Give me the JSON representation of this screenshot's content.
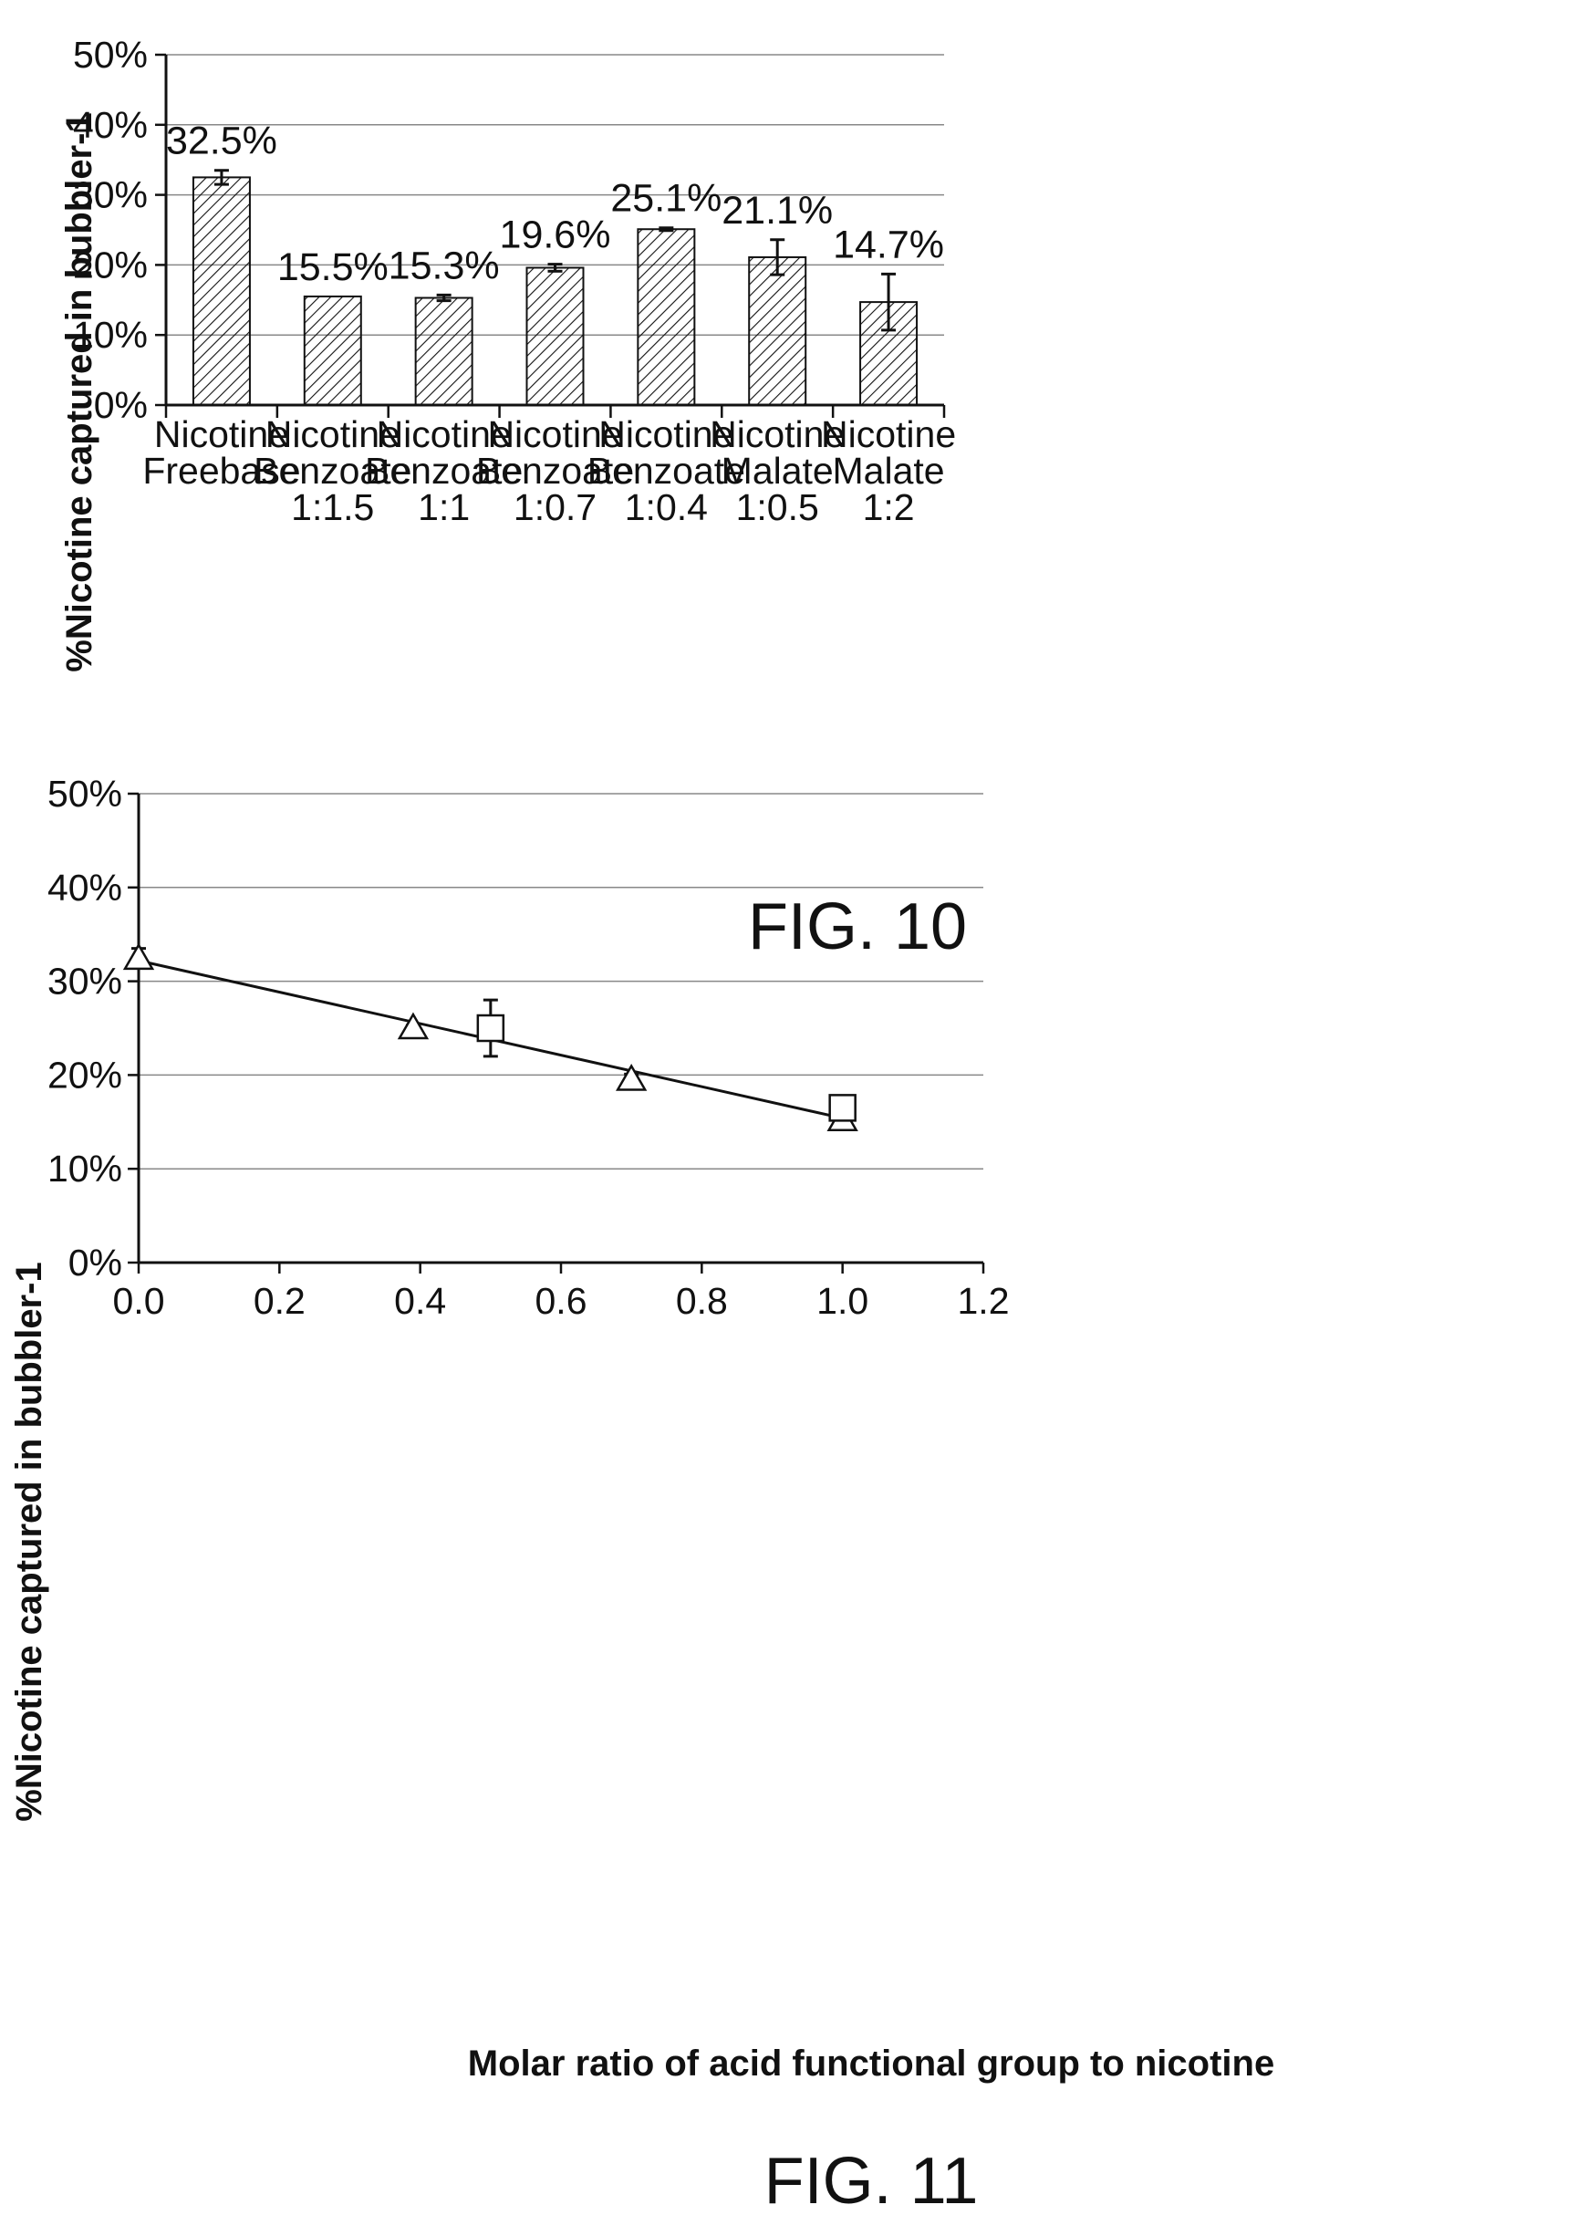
{
  "figures": [
    {
      "caption": "FIG. 10",
      "chart_data": {
        "type": "bar",
        "ylabel": "%Nicotine captured in bubbler-1",
        "xlabel": "",
        "ylim": [
          0,
          50
        ],
        "yticks": [
          "0%",
          "10%",
          "20%",
          "30%",
          "40%",
          "50%"
        ],
        "grid": true,
        "categories": [
          [
            "Nicotine",
            "Freebase"
          ],
          [
            "Nicotine",
            "Benzoate",
            "1:1.5"
          ],
          [
            "Nicotine",
            "Benzoate",
            "1:1"
          ],
          [
            "Nicotine",
            "Benzoate",
            "1:0.7"
          ],
          [
            "Nicotine",
            "Benzoate",
            "1:0.4"
          ],
          [
            "Nicotine",
            "Malate",
            "1:0.5"
          ],
          [
            "Nicotine",
            "Malate",
            "1:2"
          ]
        ],
        "values": [
          32.5,
          15.5,
          15.3,
          19.6,
          25.1,
          21.1,
          14.7
        ],
        "errors": [
          1.0,
          0.0,
          0.4,
          0.5,
          0.2,
          2.5,
          4.0
        ],
        "data_labels": [
          "32.5%",
          "15.5%",
          "15.3%",
          "19.6%",
          "25.1%",
          "21.1%",
          "14.7%"
        ],
        "fill": "diagonal-hatch"
      }
    },
    {
      "caption": "FIG. 11",
      "chart_data": {
        "type": "scatter",
        "ylabel": "%Nicotine captured in bubbler-1",
        "xlabel": "Molar ratio of acid functional group to nicotine",
        "xlim": [
          0,
          1.2
        ],
        "ylim": [
          0,
          50
        ],
        "xticks": [
          "0.0",
          "0.2",
          "0.4",
          "0.6",
          "0.8",
          "1.0",
          "1.2"
        ],
        "yticks": [
          "0%",
          "10%",
          "20%",
          "30%",
          "40%",
          "50%"
        ],
        "grid": true,
        "series": [
          {
            "marker": "triangle",
            "points": [
              {
                "x": 0.0,
                "y": 32.5,
                "err": 1.0
              },
              {
                "x": 0.39,
                "y": 25.1,
                "err": 0.2
              },
              {
                "x": 0.7,
                "y": 19.6,
                "err": 0.5
              },
              {
                "x": 1.0,
                "y": 15.3,
                "err": 0.4
              }
            ]
          },
          {
            "marker": "square",
            "points": [
              {
                "x": 0.5,
                "y": 25.0,
                "err": 3.0
              },
              {
                "x": 1.0,
                "y": 16.5,
                "err": 1.2
              }
            ]
          }
        ],
        "trendline": {
          "x": [
            0.0,
            1.0
          ],
          "y": [
            32.2,
            15.4
          ]
        }
      }
    }
  ]
}
